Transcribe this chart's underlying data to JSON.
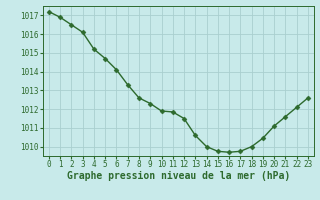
{
  "x": [
    0,
    1,
    2,
    3,
    4,
    5,
    6,
    7,
    8,
    9,
    10,
    11,
    12,
    13,
    14,
    15,
    16,
    17,
    18,
    19,
    20,
    21,
    22,
    23
  ],
  "y": [
    1017.2,
    1016.9,
    1016.5,
    1016.1,
    1015.2,
    1014.7,
    1014.1,
    1013.3,
    1012.6,
    1012.3,
    1011.9,
    1011.85,
    1011.5,
    1010.6,
    1010.0,
    1009.75,
    1009.7,
    1009.75,
    1010.0,
    1010.45,
    1011.1,
    1011.6,
    1012.1,
    1012.6
  ],
  "line_color": "#2d6a2d",
  "marker_color": "#2d6a2d",
  "bg_color": "#c8eaea",
  "grid_color": "#aacfcf",
  "xlabel": "Graphe pression niveau de la mer (hPa)",
  "ylim": [
    1009.5,
    1017.5
  ],
  "yticks": [
    1010,
    1011,
    1012,
    1013,
    1014,
    1015,
    1016,
    1017
  ],
  "xticks": [
    0,
    1,
    2,
    3,
    4,
    5,
    6,
    7,
    8,
    9,
    10,
    11,
    12,
    13,
    14,
    15,
    16,
    17,
    18,
    19,
    20,
    21,
    22,
    23
  ],
  "tick_label_fontsize": 5.5,
  "xlabel_fontsize": 7.0,
  "line_width": 1.0,
  "marker_size": 2.5
}
